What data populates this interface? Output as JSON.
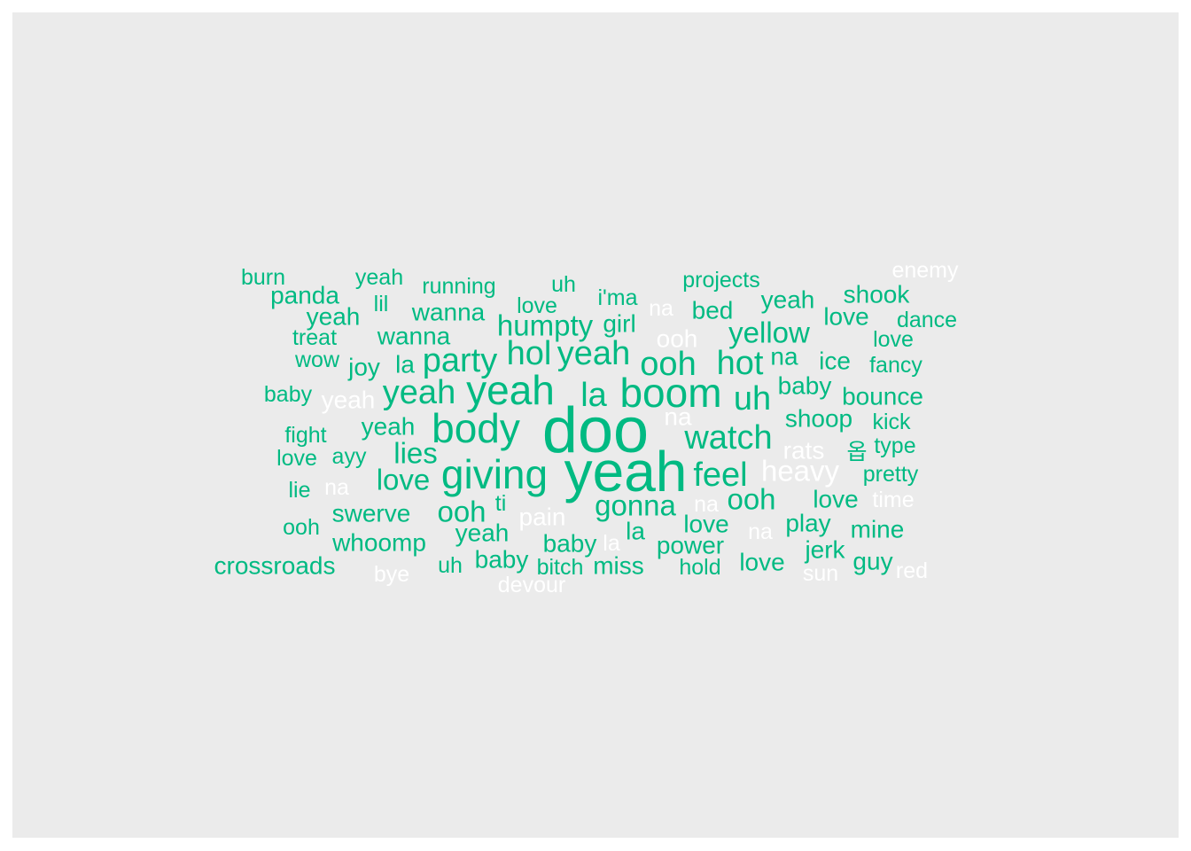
{
  "chart_data": {
    "type": "wordcloud",
    "title": "",
    "colors": {
      "panel_bg": "#ebebeb",
      "green": "#00ba82",
      "white": "#ffffff"
    },
    "words": [
      {
        "text": "burn",
        "size": 1,
        "color": "green"
      },
      {
        "text": "yeah",
        "size": 1,
        "color": "green"
      },
      {
        "text": "running",
        "size": 1,
        "color": "green"
      },
      {
        "text": "uh",
        "size": 1,
        "color": "green"
      },
      {
        "text": "projects",
        "size": 1,
        "color": "green"
      },
      {
        "text": "enemy",
        "size": 1,
        "color": "white"
      },
      {
        "text": "panda",
        "size": 2,
        "color": "green"
      },
      {
        "text": "love",
        "size": 1,
        "color": "green"
      },
      {
        "text": "i'ma",
        "size": 1,
        "color": "green"
      },
      {
        "text": "yeah",
        "size": 2,
        "color": "green"
      },
      {
        "text": "shook",
        "size": 2,
        "color": "green"
      },
      {
        "text": "lil",
        "size": 1,
        "color": "green"
      },
      {
        "text": "wanna",
        "size": 2,
        "color": "green"
      },
      {
        "text": "na",
        "size": 1,
        "color": "white"
      },
      {
        "text": "bed",
        "size": 2,
        "color": "green"
      },
      {
        "text": "yeah",
        "size": 2,
        "color": "green"
      },
      {
        "text": "love",
        "size": 2,
        "color": "green"
      },
      {
        "text": "humpty",
        "size": 3,
        "color": "green"
      },
      {
        "text": "girl",
        "size": 2,
        "color": "green"
      },
      {
        "text": "dance",
        "size": 1,
        "color": "green"
      },
      {
        "text": "treat",
        "size": 1,
        "color": "green"
      },
      {
        "text": "wanna",
        "size": 2,
        "color": "green"
      },
      {
        "text": "ooh",
        "size": 2,
        "color": "white"
      },
      {
        "text": "yellow",
        "size": 3,
        "color": "green"
      },
      {
        "text": "love",
        "size": 1,
        "color": "green"
      },
      {
        "text": "wow",
        "size": 1,
        "color": "green"
      },
      {
        "text": "joy",
        "size": 2,
        "color": "green"
      },
      {
        "text": "la",
        "size": 2,
        "color": "green"
      },
      {
        "text": "party",
        "size": 4,
        "color": "green"
      },
      {
        "text": "hol",
        "size": 4,
        "color": "green"
      },
      {
        "text": "yeah",
        "size": 4,
        "color": "green"
      },
      {
        "text": "ooh",
        "size": 4,
        "color": "green"
      },
      {
        "text": "hot",
        "size": 4,
        "color": "green"
      },
      {
        "text": "na",
        "size": 2,
        "color": "green"
      },
      {
        "text": "ice",
        "size": 2,
        "color": "green"
      },
      {
        "text": "fancy",
        "size": 1,
        "color": "green"
      },
      {
        "text": "baby",
        "size": 1,
        "color": "green"
      },
      {
        "text": "yeah",
        "size": 2,
        "color": "white"
      },
      {
        "text": "yeah",
        "size": 4,
        "color": "green"
      },
      {
        "text": "yeah",
        "size": 5,
        "color": "green"
      },
      {
        "text": "la",
        "size": 4,
        "color": "green"
      },
      {
        "text": "boom",
        "size": 5,
        "color": "green"
      },
      {
        "text": "uh",
        "size": 4,
        "color": "green"
      },
      {
        "text": "baby",
        "size": 2,
        "color": "green"
      },
      {
        "text": "bounce",
        "size": 2,
        "color": "green"
      },
      {
        "text": "doo",
        "size": 7,
        "color": "green"
      },
      {
        "text": "na",
        "size": 2,
        "color": "white"
      },
      {
        "text": "shoop",
        "size": 2,
        "color": "green"
      },
      {
        "text": "kick",
        "size": 1,
        "color": "green"
      },
      {
        "text": "fight",
        "size": 1,
        "color": "green"
      },
      {
        "text": "yeah",
        "size": 2,
        "color": "green"
      },
      {
        "text": "body",
        "size": 5,
        "color": "green"
      },
      {
        "text": "watch",
        "size": 4,
        "color": "green"
      },
      {
        "text": "rats",
        "size": 2,
        "color": "white"
      },
      {
        "text": "옵",
        "size": 1,
        "color": "green"
      },
      {
        "text": "type",
        "size": 1,
        "color": "green"
      },
      {
        "text": "love",
        "size": 1,
        "color": "green"
      },
      {
        "text": "ayy",
        "size": 1,
        "color": "green"
      },
      {
        "text": "lies",
        "size": 3,
        "color": "green"
      },
      {
        "text": "giving",
        "size": 5,
        "color": "green"
      },
      {
        "text": "yeah",
        "size": 6,
        "color": "green"
      },
      {
        "text": "feel",
        "size": 4,
        "color": "green"
      },
      {
        "text": "heavy",
        "size": 3,
        "color": "white"
      },
      {
        "text": "pretty",
        "size": 1,
        "color": "green"
      },
      {
        "text": "lie",
        "size": 1,
        "color": "green"
      },
      {
        "text": "na",
        "size": 1,
        "color": "white"
      },
      {
        "text": "love",
        "size": 3,
        "color": "green"
      },
      {
        "text": "ti",
        "size": 1,
        "color": "green"
      },
      {
        "text": "gonna",
        "size": 3,
        "color": "green"
      },
      {
        "text": "ooh",
        "size": 3,
        "color": "green"
      },
      {
        "text": "love",
        "size": 2,
        "color": "green"
      },
      {
        "text": "time",
        "size": 1,
        "color": "white"
      },
      {
        "text": "swerve",
        "size": 2,
        "color": "green"
      },
      {
        "text": "ooh",
        "size": 3,
        "color": "green"
      },
      {
        "text": "pain",
        "size": 2,
        "color": "white"
      },
      {
        "text": "na",
        "size": 1,
        "color": "white"
      },
      {
        "text": "love",
        "size": 2,
        "color": "green"
      },
      {
        "text": "play",
        "size": 2,
        "color": "green"
      },
      {
        "text": "ooh",
        "size": 1,
        "color": "green"
      },
      {
        "text": "mine",
        "size": 2,
        "color": "green"
      },
      {
        "text": "whoomp",
        "size": 2,
        "color": "green"
      },
      {
        "text": "yeah",
        "size": 2,
        "color": "green"
      },
      {
        "text": "baby",
        "size": 2,
        "color": "green"
      },
      {
        "text": "la",
        "size": 2,
        "color": "green"
      },
      {
        "text": "la",
        "size": 1,
        "color": "white"
      },
      {
        "text": "power",
        "size": 2,
        "color": "green"
      },
      {
        "text": "na",
        "size": 1,
        "color": "white"
      },
      {
        "text": "jerk",
        "size": 2,
        "color": "green"
      },
      {
        "text": "crossroads",
        "size": 2,
        "color": "green"
      },
      {
        "text": "uh",
        "size": 1,
        "color": "green"
      },
      {
        "text": "baby",
        "size": 2,
        "color": "green"
      },
      {
        "text": "bitch",
        "size": 1,
        "color": "green"
      },
      {
        "text": "miss",
        "size": 2,
        "color": "green"
      },
      {
        "text": "hold",
        "size": 1,
        "color": "green"
      },
      {
        "text": "love",
        "size": 2,
        "color": "green"
      },
      {
        "text": "guy",
        "size": 2,
        "color": "green"
      },
      {
        "text": "red",
        "size": 1,
        "color": "white"
      },
      {
        "text": "bye",
        "size": 1,
        "color": "white"
      },
      {
        "text": "sun",
        "size": 1,
        "color": "white"
      },
      {
        "text": "devour",
        "size": 1,
        "color": "white"
      }
    ]
  }
}
